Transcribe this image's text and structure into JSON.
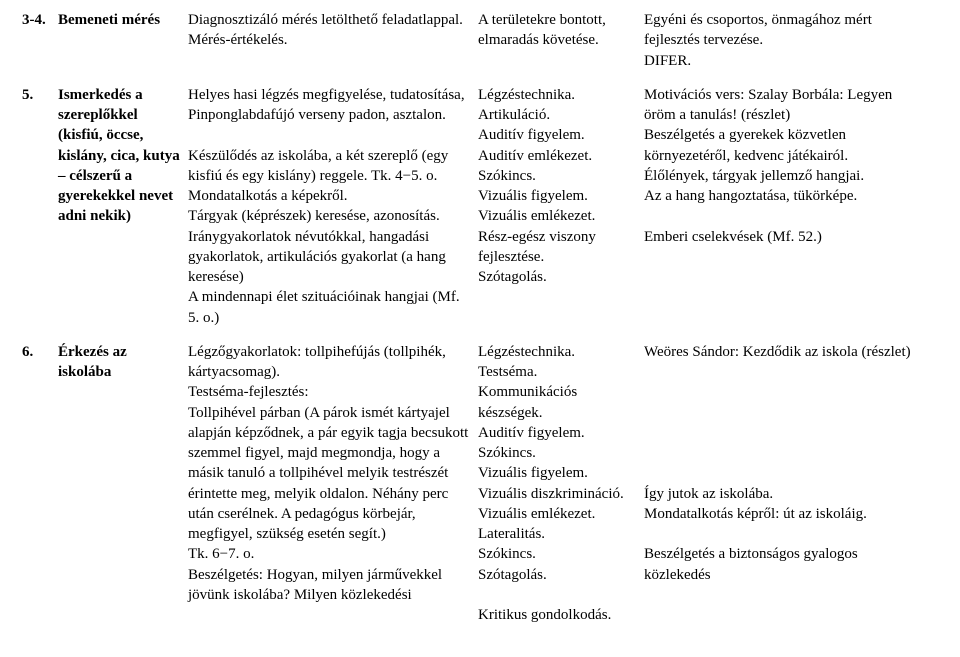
{
  "rows": [
    {
      "num": "3-4.",
      "topic": "Bemeneti mérés",
      "activity": "Diagnosztizáló mérés letölthető feladatlappal.\nMérés-értékelés.",
      "skill": "A területekre bontott, elmaradás követése.",
      "note": "Egyéni és csoportos, önmagához mért fejlesztés tervezése.\nDIFER."
    },
    {
      "num": "5.",
      "topic": "Ismerkedés a szereplőkkel (kisfiú, öccse, kislány, cica, kutya – célszerű a gyerekekkel nevet adni nekik)",
      "activity": "Helyes hasi légzés megfigyelése, tudatosítása,\nPinponglabdafújó verseny padon, asztalon.\n\nKészülődés az iskolába, a két szereplő (egy kisfiú és egy kislány) reggele. Tk. 4−5. o.\nMondatalkotás a képekről.\nTárgyak (képrészek) keresése, azonosítás.\nIránygyakorlatok névutókkal, hangadási gyakorlatok, artikulációs gyakorlat (a hang keresése)\nA mindennapi élet szituációinak hangjai (Mf. 5. o.)",
      "skill": "Légzéstechnika.\nArtikuláció.\nAuditív figyelem.\nAuditív emlékezet.\nSzókincs.\nVizuális figyelem.\nVizuális emlékezet.\nRész-egész viszony fejlesztése.\nSzótagolás.",
      "note": "Motivációs vers: Szalay Borbála: Legyen öröm a tanulás! (részlet)\nBeszélgetés a gyerekek közvetlen környezetéről, kedvenc játékairól.\nÉlőlények, tárgyak jellemző hangjai.\nAz a hang hangoztatása, tükörképe.\n\nEmberi cselekvések (Mf. 52.)"
    },
    {
      "num": "6.",
      "topic": "Érkezés az iskolába",
      "activity": "Légzőgyakorlatok: tollpihefújás (tollpihék, kártyacsomag).\nTestséma-fejlesztés:\nTollpihével párban (A párok ismét kártyajel alapján képződnek, a pár egyik tagja becsukott szemmel figyel, majd megmondja, hogy a másik tanuló a tollpihével melyik testrészét érintette meg, melyik oldalon. Néhány perc után cserélnek. A pedagógus körbejár, megfigyel, szükség esetén segít.)\nTk. 6−7. o.\nBeszélgetés: Hogyan, milyen járművekkel jövünk iskolába? Milyen közlekedési",
      "skill": "Légzéstechnika.\nTestséma.\nKommunikációs készségek.\nAuditív figyelem.\nSzókincs.\nVizuális figyelem.\nVizuális diszkrimináció.\nVizuális emlékezet.\nLateralitás.\nSzókincs.\nSzótagolás.\n\nKritikus gondolkodás.",
      "note": "Weöres Sándor: Kezdődik az iskola (részlet)\n\n\n\n\n\n\nÍgy jutok az iskolába.\nMondatalkotás képről: út az iskoláig.\n\nBeszélgetés a biztonságos gyalogos közlekedés"
    }
  ]
}
